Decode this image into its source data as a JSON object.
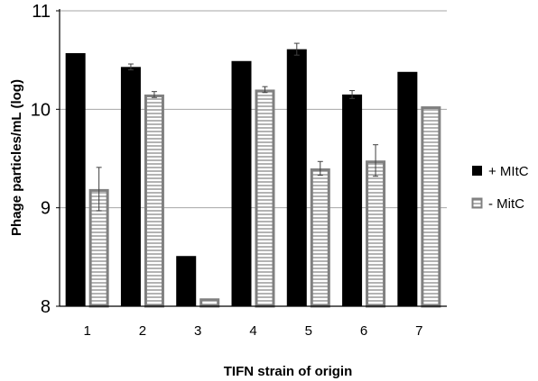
{
  "chart_data": {
    "type": "bar",
    "categories": [
      "1",
      "2",
      "3",
      "4",
      "5",
      "6",
      "7"
    ],
    "series": [
      {
        "name": "+ MItC",
        "color": "#000000",
        "values": [
          10.57,
          10.43,
          8.51,
          10.49,
          10.61,
          10.15,
          10.38
        ],
        "errors": [
          0.0,
          0.03,
          0.0,
          0.0,
          0.06,
          0.04,
          0.0
        ]
      },
      {
        "name": "- MitC",
        "color": "#ffffff",
        "edge_color": "#808080",
        "pattern": "horizontal-stripes",
        "values": [
          9.19,
          10.15,
          8.08,
          10.2,
          9.4,
          9.48,
          10.03
        ],
        "errors": [
          0.22,
          0.03,
          0.0,
          0.03,
          0.07,
          0.16,
          0.0
        ]
      }
    ],
    "ylim": [
      8,
      11
    ],
    "yticks": [
      "8",
      "9",
      "10",
      "11"
    ],
    "xlabel": "TIFN strain of origin",
    "ylabel": "Phage particles/mL (log)",
    "grid": "horizontal",
    "legend_position": "right"
  }
}
